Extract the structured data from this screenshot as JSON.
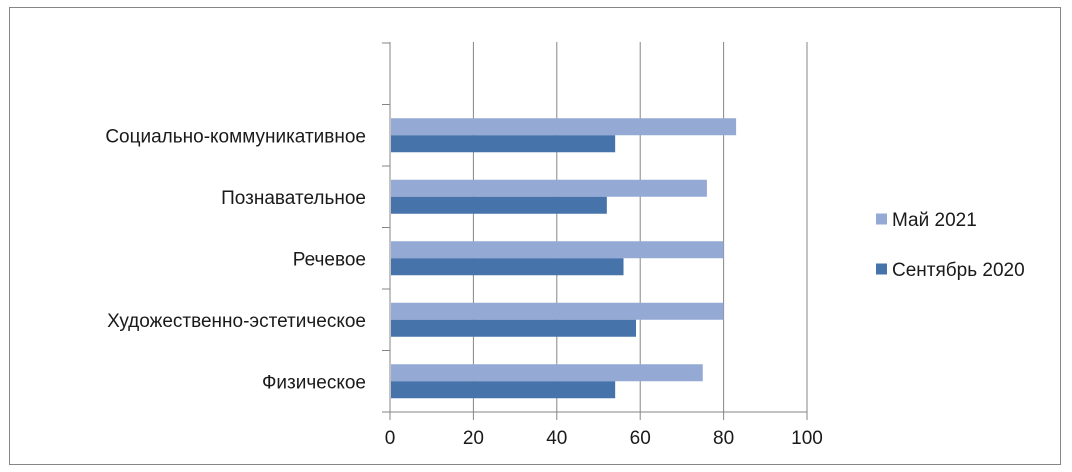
{
  "chart_data": {
    "type": "bar",
    "orientation": "horizontal",
    "categories": [
      "Физическое",
      "Художественно-эстетическое",
      "Речевое",
      "Познавательное",
      "Социально-коммуникативное"
    ],
    "series": [
      {
        "name": "Сентябрь 2020",
        "color": "#4673aa",
        "values": [
          54,
          59,
          56,
          52,
          54
        ]
      },
      {
        "name": "Май 2021",
        "color": "#94a9d3",
        "values": [
          75,
          80,
          80,
          76,
          83
        ]
      }
    ],
    "title": "",
    "xlabel": "",
    "ylabel": "",
    "xlim": [
      0,
      100
    ],
    "xticks": [
      "0",
      "20",
      "40",
      "60",
      "80",
      "100"
    ],
    "grid": "vertical",
    "legend": {
      "position": "right",
      "entries": [
        {
          "label": "Май 2021",
          "color": "#94a9d3"
        },
        {
          "label": "Сентябрь 2020",
          "color": "#4673aa"
        }
      ]
    }
  }
}
